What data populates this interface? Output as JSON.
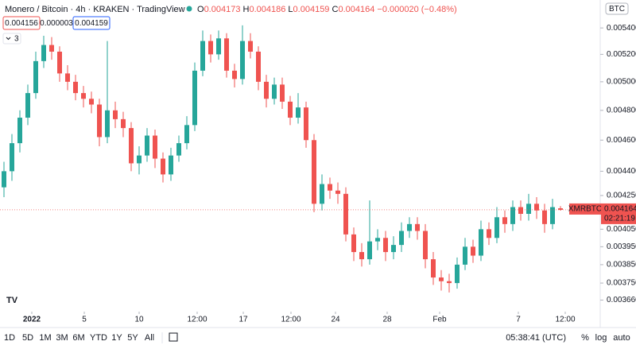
{
  "header": {
    "title": "Monero / Bitcoin · 4h · KRAKEN · TradingView",
    "ohlc_labels": [
      "O",
      "H",
      "L",
      "C"
    ],
    "change": "−0.000020 (−0.48%)",
    "sell": "0.004156",
    "spread": "0.000003",
    "buy": "0.004159",
    "indicators_count": "3",
    "currency": "BTC"
  },
  "chart_data": {
    "type": "candlestick",
    "x": [
      0,
      1,
      2,
      3,
      4,
      5,
      6,
      7,
      8,
      9,
      10,
      11,
      12,
      13,
      14,
      15,
      16,
      17,
      18,
      19,
      20,
      21,
      22,
      23,
      24,
      25,
      26,
      27,
      28,
      29,
      30,
      31,
      32,
      33,
      34,
      35,
      36,
      37,
      38,
      39,
      40,
      41,
      42,
      43,
      44,
      45,
      46,
      47,
      48,
      49,
      50,
      51,
      52,
      53,
      54,
      55,
      56,
      57,
      58,
      59,
      60,
      61,
      62,
      63,
      64,
      65,
      66,
      67,
      68,
      69,
      70
    ],
    "open": [
      0.0043,
      0.0044,
      0.00458,
      0.00475,
      0.00492,
      0.00515,
      0.00527,
      0.00522,
      0.00506,
      0.005,
      0.00492,
      0.00488,
      0.00484,
      0.00462,
      0.0048,
      0.00474,
      0.00468,
      0.00445,
      0.0045,
      0.00463,
      0.00448,
      0.00438,
      0.0045,
      0.00458,
      0.0047,
      0.00508,
      0.0053,
      0.0052,
      0.00532,
      0.00508,
      0.00502,
      0.0053,
      0.00522,
      0.005,
      0.00488,
      0.00498,
      0.00486,
      0.00475,
      0.00482,
      0.0046,
      0.0042,
      0.00432,
      0.00428,
      0.00426,
      0.00402,
      0.00392,
      0.00388,
      0.00398,
      0.004,
      0.00392,
      0.00396,
      0.00404,
      0.00408,
      0.00404,
      0.00388,
      0.00378,
      0.00376,
      0.00375,
      0.00385,
      0.00395,
      0.0039,
      0.00405,
      0.004,
      0.00412,
      0.00408,
      0.00418,
      0.00414,
      0.0042,
      0.00416,
      0.00408,
      0.004173
    ],
    "high": [
      0.00446,
      0.00464,
      0.0048,
      0.00498,
      0.00522,
      0.00534,
      0.00533,
      0.00526,
      0.00512,
      0.00505,
      0.00497,
      0.00493,
      0.00488,
      0.0053,
      0.00486,
      0.00479,
      0.00472,
      0.00456,
      0.00468,
      0.00467,
      0.00452,
      0.00455,
      0.00463,
      0.00476,
      0.00514,
      0.00538,
      0.00535,
      0.00538,
      0.00536,
      0.00513,
      0.00542,
      0.00536,
      0.00526,
      0.00505,
      0.00503,
      0.00503,
      0.0049,
      0.00492,
      0.00486,
      0.00464,
      0.00438,
      0.00436,
      0.00433,
      0.0043,
      0.00406,
      0.00397,
      0.00422,
      0.00405,
      0.00404,
      0.00401,
      0.00409,
      0.00412,
      0.00412,
      0.00408,
      0.00392,
      0.00382,
      0.0038,
      0.00389,
      0.004,
      0.00399,
      0.0041,
      0.00409,
      0.00418,
      0.00416,
      0.00422,
      0.00422,
      0.00426,
      0.00424,
      0.0042,
      0.00423,
      0.004186
    ],
    "low": [
      0.00424,
      0.00434,
      0.00452,
      0.0047,
      0.00488,
      0.0051,
      0.00516,
      0.005,
      0.00494,
      0.00487,
      0.00482,
      0.00478,
      0.00456,
      0.00458,
      0.00468,
      0.00462,
      0.0044,
      0.00438,
      0.00446,
      0.00442,
      0.00433,
      0.00434,
      0.00446,
      0.00454,
      0.00466,
      0.00504,
      0.00514,
      0.00516,
      0.00503,
      0.00496,
      0.00498,
      0.00517,
      0.00494,
      0.00482,
      0.00484,
      0.00481,
      0.0047,
      0.00471,
      0.00455,
      0.00415,
      0.00416,
      0.00423,
      0.0042,
      0.00398,
      0.00387,
      0.00384,
      0.00385,
      0.00393,
      0.00387,
      0.00388,
      0.00392,
      0.004,
      0.00399,
      0.00383,
      0.00374,
      0.00371,
      0.0037,
      0.00372,
      0.00382,
      0.00386,
      0.00387,
      0.00396,
      0.00397,
      0.00403,
      0.00404,
      0.0041,
      0.0041,
      0.00411,
      0.00403,
      0.00405,
      0.004159
    ],
    "close": [
      0.0044,
      0.00458,
      0.00475,
      0.00492,
      0.00515,
      0.00527,
      0.00522,
      0.00506,
      0.005,
      0.00492,
      0.00488,
      0.00484,
      0.00462,
      0.0048,
      0.00474,
      0.00468,
      0.00445,
      0.0045,
      0.00463,
      0.00448,
      0.00438,
      0.0045,
      0.00458,
      0.0047,
      0.00508,
      0.0053,
      0.0052,
      0.00532,
      0.00508,
      0.00502,
      0.0053,
      0.00522,
      0.005,
      0.00488,
      0.00498,
      0.00486,
      0.00475,
      0.00482,
      0.0046,
      0.0042,
      0.00432,
      0.00428,
      0.00426,
      0.00402,
      0.00392,
      0.00388,
      0.00398,
      0.004,
      0.00392,
      0.00396,
      0.00404,
      0.00408,
      0.00404,
      0.00388,
      0.00378,
      0.00376,
      0.00375,
      0.00385,
      0.00395,
      0.0039,
      0.00405,
      0.004,
      0.00412,
      0.00408,
      0.00418,
      0.00414,
      0.0042,
      0.00416,
      0.00408,
      0.00418,
      0.004164
    ],
    "up_color": "#26a69a",
    "down_color": "#ef5350",
    "log_scale": true,
    "xlim": [
      -0.5,
      75
    ],
    "xticks": [
      {
        "value": 3.5,
        "label": "2022"
      },
      {
        "value": 10.1,
        "label": "5"
      },
      {
        "value": 17,
        "label": "10"
      },
      {
        "value": 24.3,
        "label": "12:00"
      },
      {
        "value": 30.1,
        "label": "17"
      },
      {
        "value": 36.1,
        "label": "12:00"
      },
      {
        "value": 41.7,
        "label": "24"
      },
      {
        "value": 48.2,
        "label": "28"
      },
      {
        "value": 54.8,
        "label": "Feb"
      },
      {
        "value": 64.7,
        "label": "7"
      },
      {
        "value": 70.6,
        "label": "12:00"
      }
    ],
    "ylim": [
      0.0036,
      0.00562
    ],
    "yticks": [
      {
        "value": 0.0054,
        "label": "0.005400"
      },
      {
        "value": 0.0052,
        "label": "0.005200"
      },
      {
        "value": 0.005,
        "label": "0.005000"
      },
      {
        "value": 0.0048,
        "label": "0.004800"
      },
      {
        "value": 0.0046,
        "label": "0.004600"
      },
      {
        "value": 0.0044,
        "label": "0.004400"
      },
      {
        "value": 0.00425,
        "label": "0.004250"
      },
      {
        "value": 0.00405,
        "label": "0.004050"
      },
      {
        "value": 0.00395,
        "label": "0.003950"
      },
      {
        "value": 0.00385,
        "label": "0.003850"
      },
      {
        "value": 0.00375,
        "label": "0.003750"
      },
      {
        "value": 0.00366,
        "label": "0.003660"
      }
    ],
    "last_price": {
      "symbol": "XMRBTC",
      "countdown": "02:21:19"
    }
  },
  "toolbar": {
    "ranges": [
      "1D",
      "5D",
      "1M",
      "3M",
      "6M",
      "YTD",
      "1Y",
      "5Y",
      "All"
    ],
    "clock": "05:38:41 (UTC)",
    "options": [
      "%",
      "log",
      "auto"
    ]
  }
}
